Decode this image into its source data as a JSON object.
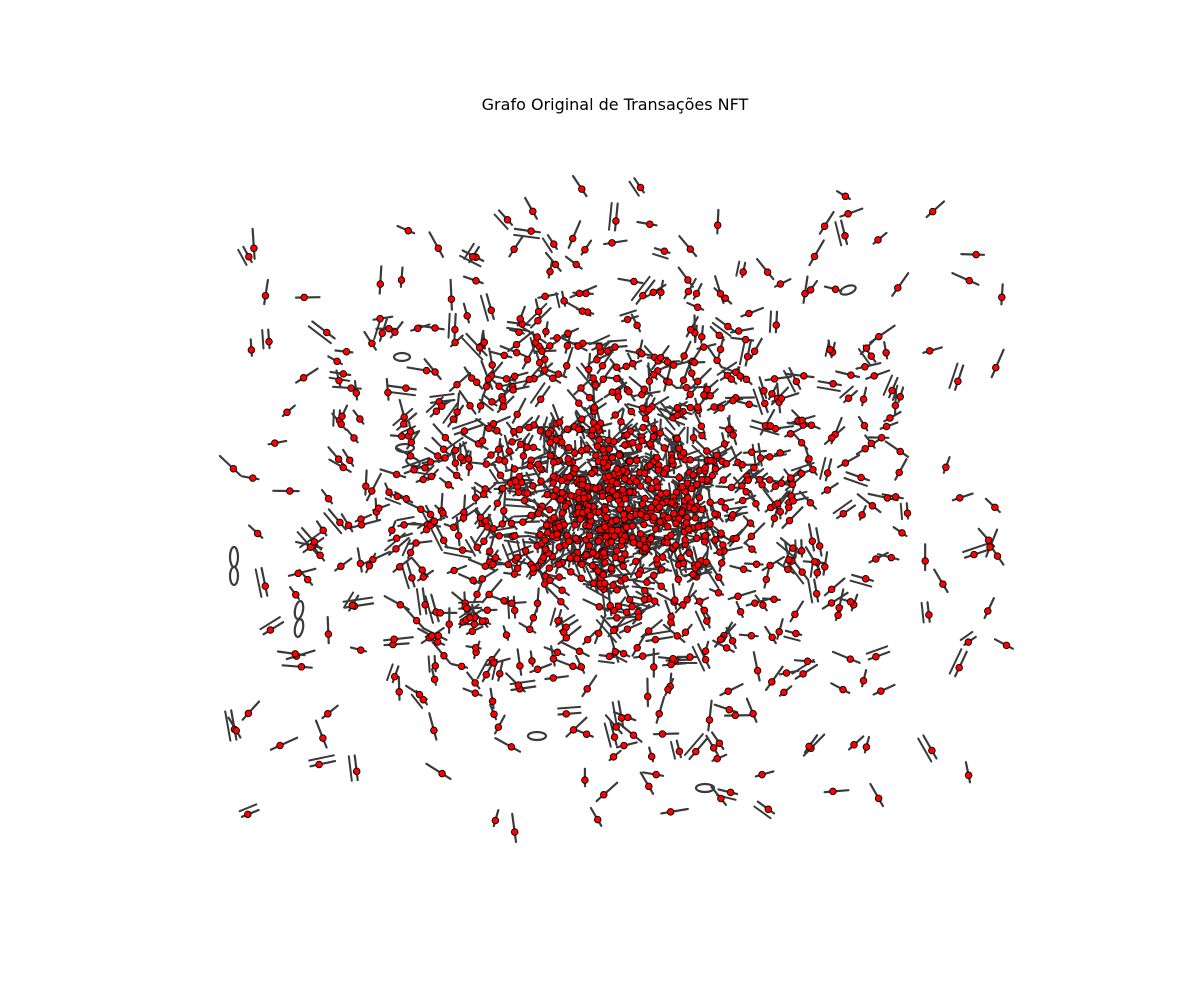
{
  "figure": {
    "title": "Grafo Original de Transações NFT"
  },
  "graph": {
    "layout": "spring",
    "node_color": "#ff0000",
    "node_edge_color": "#000000",
    "edge_color": "#3a3a3a",
    "background": "#ffffff",
    "axes_visible": false
  }
}
